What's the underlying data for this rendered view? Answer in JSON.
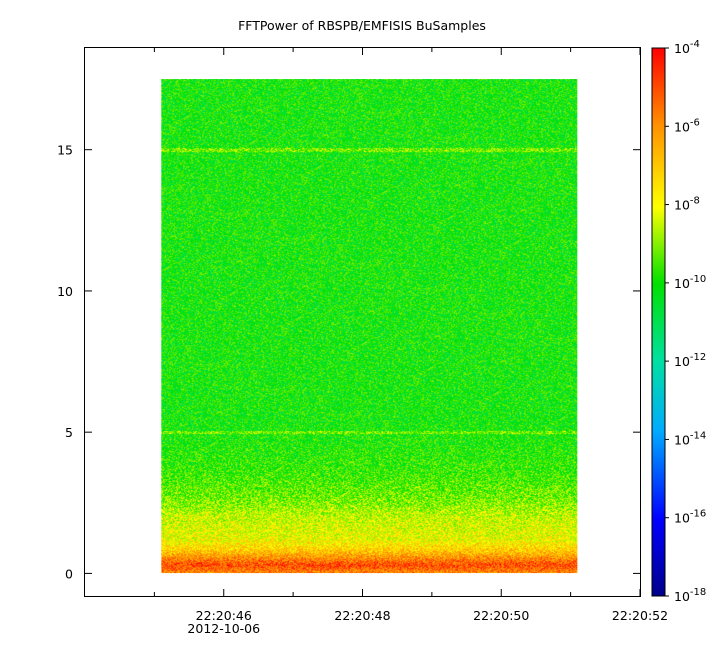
{
  "chart_data": {
    "type": "heatmap",
    "title": "FFTPower of RBSPB/EMFISIS  BuSamples",
    "xlabel": "",
    "ylabel": "",
    "x_range_seconds": [
      44.0,
      52.0
    ],
    "x_ticks": [
      {
        "label": "22:20:46",
        "value": 46
      },
      {
        "label": "22:20:48",
        "value": 48
      },
      {
        "label": "22:20:50",
        "value": 50
      },
      {
        "label": "22:20:52",
        "value": 52
      }
    ],
    "x_minor_ticks": [
      45,
      47,
      49,
      51
    ],
    "x_date_label": "2012-10-06",
    "y_range": [
      -0.8,
      18.6
    ],
    "y_ticks": [
      0,
      5,
      10,
      15
    ],
    "data_extent": {
      "x": [
        45.1,
        51.1
      ],
      "y": [
        0.0,
        17.5
      ]
    },
    "colorbar": {
      "scale": "log",
      "range_exponent": [
        -18,
        -4
      ],
      "tick_exponents": [
        -4,
        -6,
        -8,
        -10,
        -12,
        -14,
        -16,
        -18
      ],
      "tick_base": "10",
      "colors": [
        "#00008b",
        "#0000ff",
        "#00ffff",
        "#00e000",
        "#ffff00",
        "#ff8000",
        "#ff0000"
      ]
    },
    "power_profile_by_frequency": [
      {
        "y": 0.0,
        "log10_power": -6.0
      },
      {
        "y": 0.3,
        "log10_power": -5.0
      },
      {
        "y": 0.8,
        "log10_power": -7.0
      },
      {
        "y": 1.2,
        "log10_power": -8.0
      },
      {
        "y": 2.0,
        "log10_power": -8.4
      },
      {
        "y": 2.5,
        "log10_power": -9.0
      },
      {
        "y": 3.5,
        "log10_power": -9.6
      },
      {
        "y": 5.0,
        "log10_power": -10.0
      },
      {
        "y": 10.0,
        "log10_power": -10.0
      },
      {
        "y": 15.0,
        "log10_power": -10.0
      },
      {
        "y": 17.5,
        "log10_power": -10.0
      }
    ],
    "spectral_lines": [
      5.0,
      15.0
    ],
    "grid": false
  }
}
